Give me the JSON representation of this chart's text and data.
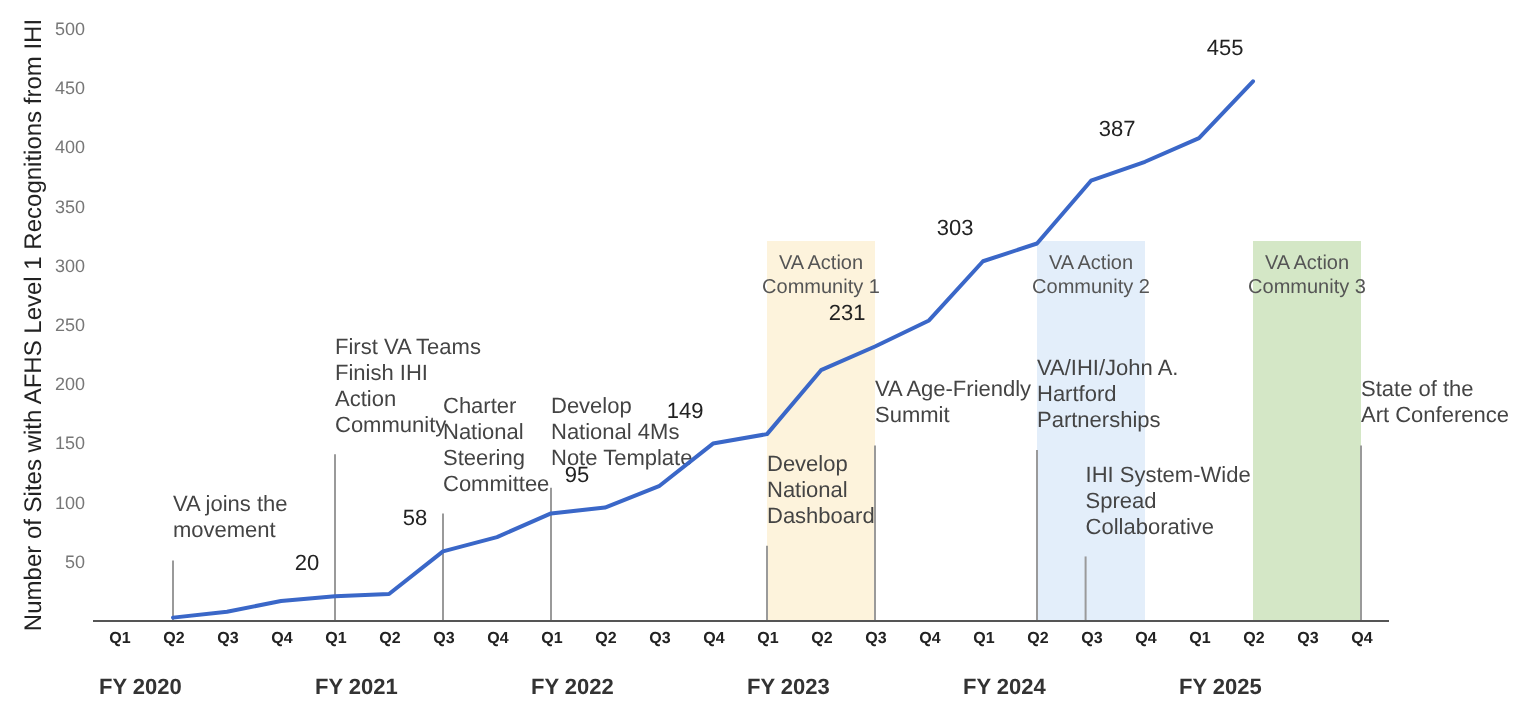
{
  "chart_data": {
    "type": "line",
    "ylabel": "Number of Sites with AFHS Level 1 Recognitions from IHI",
    "categories": [
      "Q1",
      "Q2",
      "Q3",
      "Q4",
      "Q1",
      "Q2",
      "Q3",
      "Q4",
      "Q1",
      "Q2",
      "Q3",
      "Q4",
      "Q1",
      "Q2",
      "Q3",
      "Q4",
      "Q1",
      "Q2",
      "Q3",
      "Q4",
      "Q1",
      "Q2",
      "Q3",
      "Q4"
    ],
    "ylim": [
      0,
      500
    ],
    "yticks": [
      50,
      100,
      150,
      200,
      250,
      300,
      350,
      400,
      450,
      500
    ],
    "series": [
      {
        "color": "#3a67c8",
        "values": [
          null,
          2,
          7,
          16,
          20,
          22,
          58,
          70,
          90,
          95,
          113,
          149,
          157,
          211,
          231,
          253,
          303,
          318,
          371,
          387,
          407,
          455,
          null,
          null
        ],
        "value_labels": [
          null,
          null,
          null,
          null,
          "20",
          null,
          "58",
          null,
          null,
          "95",
          null,
          "149",
          null,
          null,
          "231",
          null,
          "303",
          null,
          null,
          "387",
          null,
          "455",
          null,
          null
        ]
      }
    ],
    "annotations": [
      "VA joins the movement",
      "First VA Teams Finish IHI Action Community",
      "Charter National Steering Committee",
      "Develop National 4Ms Note Template",
      "Develop National Dashboard",
      "VA Age-Friendly Summit",
      "VA/IHI/John A. Hartford Partnerships",
      "IHI System-Wide Spread Collaborative",
      "State of the Art Conference",
      "VA Action Community 1",
      "VA Action Community 2",
      "VA Action Community 3",
      "FY 2020",
      "FY 2021",
      "FY 2022",
      "FY 2023",
      "FY 2024",
      "FY 2025"
    ]
  }
}
